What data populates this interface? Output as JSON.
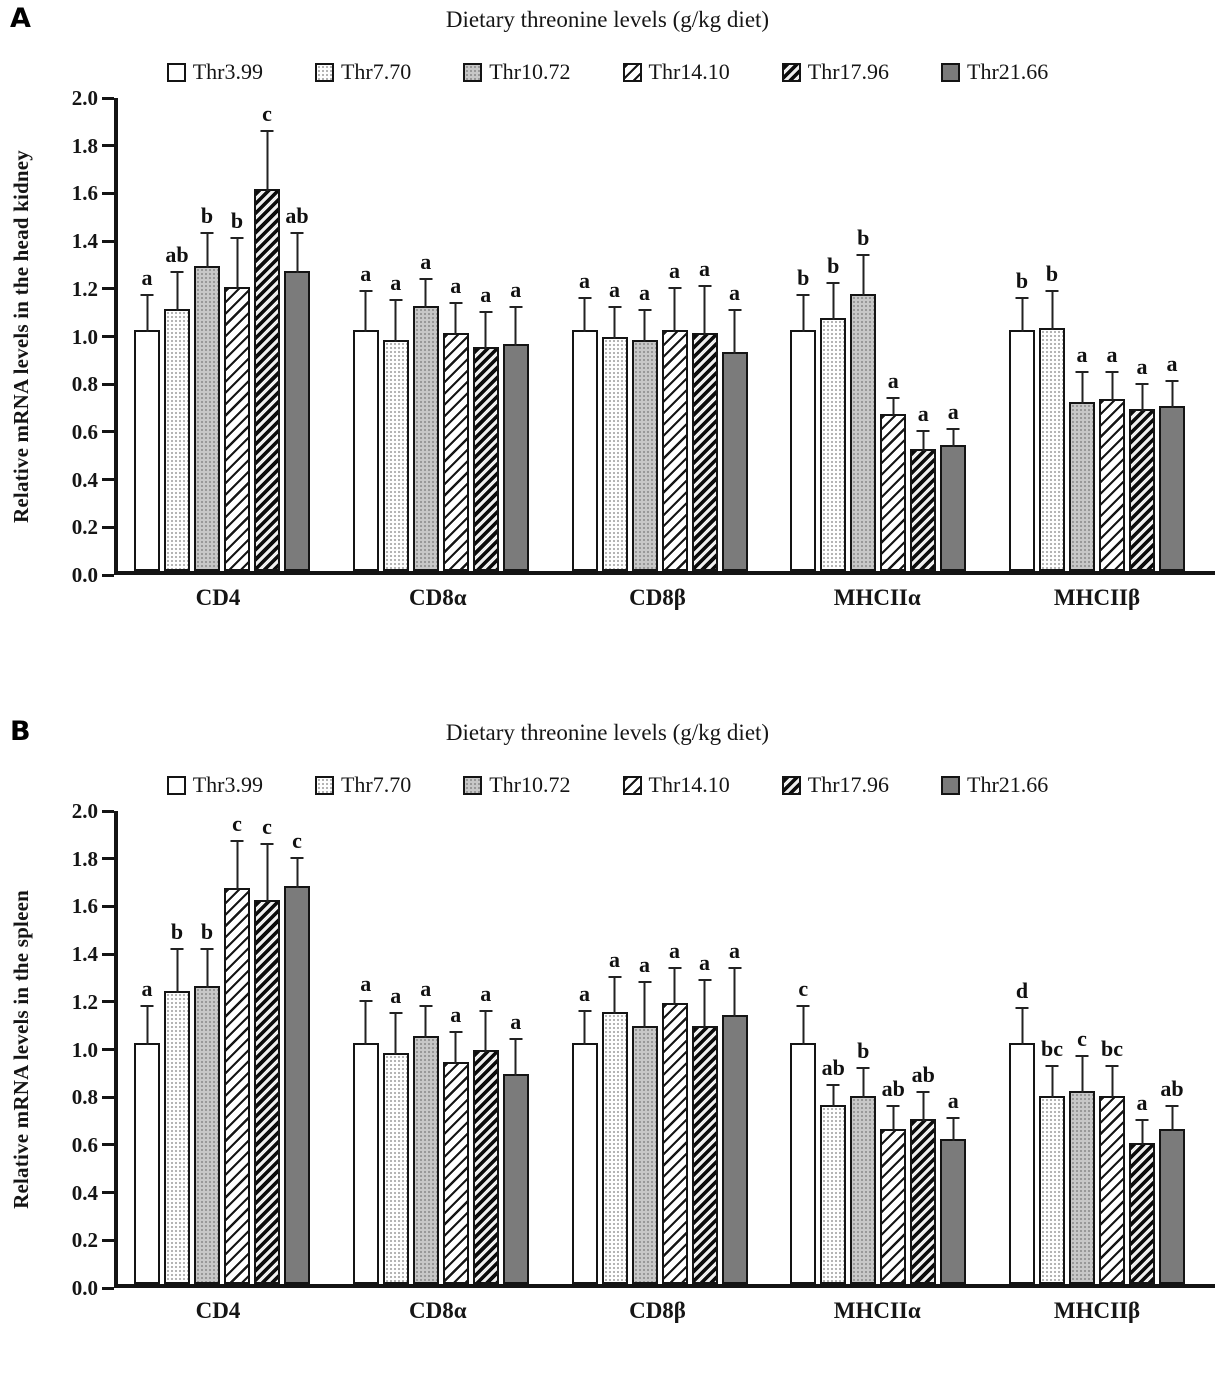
{
  "colors": {
    "bar_border": "#141414",
    "axis": "#141414",
    "error_bar": "#222222",
    "solid_bar_fill": "#7b7b7b",
    "dots_gray_fill": "#c7c7c7",
    "background": "#ffffff"
  },
  "chart_data": [
    {
      "type": "bar",
      "panel_label": "A",
      "title": "Dietary threonine levels (g/kg diet)",
      "ylabel": "Relative mRNA levels in the head kidney",
      "ylim": [
        0.0,
        2.0
      ],
      "ytick_step": 0.2,
      "yticks": [
        "2.0",
        "1.8",
        "1.6",
        "1.4",
        "1.2",
        "1.0",
        "0.8",
        "0.6",
        "0.4",
        "0.2",
        "0.0"
      ],
      "grid": false,
      "legend_position": "top",
      "error_bars": true,
      "categories": [
        "CD4",
        "CD8α",
        "CD8β",
        "MHCIIα",
        "MHCIIβ"
      ],
      "series": [
        {
          "name": "Thr3.99",
          "pattern": "white",
          "values": [
            1.01,
            1.01,
            1.01,
            1.01,
            1.01
          ],
          "errors": [
            0.15,
            0.17,
            0.14,
            0.15,
            0.14
          ],
          "letters": [
            "a",
            "a",
            "a",
            "b",
            "b"
          ]
        },
        {
          "name": "Thr7.70",
          "pattern": "dots-light",
          "values": [
            1.1,
            0.97,
            0.98,
            1.06,
            1.02
          ],
          "errors": [
            0.16,
            0.17,
            0.13,
            0.15,
            0.16
          ],
          "letters": [
            "ab",
            "a",
            "a",
            "b",
            "b"
          ]
        },
        {
          "name": "Thr10.72",
          "pattern": "dots-gray",
          "values": [
            1.28,
            1.11,
            0.97,
            1.16,
            0.71
          ],
          "errors": [
            0.14,
            0.12,
            0.13,
            0.17,
            0.13
          ],
          "letters": [
            "b",
            "a",
            "a",
            "b",
            "a"
          ]
        },
        {
          "name": "Thr14.10",
          "pattern": "hatch-diagonal",
          "values": [
            1.19,
            1.0,
            1.01,
            0.66,
            0.72
          ],
          "errors": [
            0.21,
            0.13,
            0.18,
            0.07,
            0.12
          ],
          "letters": [
            "b",
            "a",
            "a",
            "a",
            "a"
          ]
        },
        {
          "name": "Thr17.96",
          "pattern": "hatch-diagonal-dense",
          "values": [
            1.6,
            0.94,
            1.0,
            0.51,
            0.68
          ],
          "errors": [
            0.25,
            0.15,
            0.2,
            0.08,
            0.11
          ],
          "letters": [
            "c",
            "a",
            "a",
            "a",
            "a"
          ]
        },
        {
          "name": "Thr21.66",
          "pattern": "solid-gray",
          "values": [
            1.26,
            0.95,
            0.92,
            0.53,
            0.69
          ],
          "errors": [
            0.16,
            0.16,
            0.18,
            0.07,
            0.11
          ],
          "letters": [
            "ab",
            "a",
            "a",
            "a",
            "a"
          ]
        }
      ]
    },
    {
      "type": "bar",
      "panel_label": "B",
      "title": "Dietary threonine levels (g/kg diet)",
      "ylabel": "Relative mRNA levels in the spleen",
      "ylim": [
        0.0,
        2.0
      ],
      "ytick_step": 0.2,
      "yticks": [
        "2.0",
        "1.8",
        "1.6",
        "1.4",
        "1.2",
        "1.0",
        "0.8",
        "0.6",
        "0.4",
        "0.2",
        "0.0"
      ],
      "grid": false,
      "legend_position": "top",
      "error_bars": true,
      "categories": [
        "CD4",
        "CD8α",
        "CD8β",
        "MHCIIα",
        "MHCIIβ"
      ],
      "series": [
        {
          "name": "Thr3.99",
          "pattern": "white",
          "values": [
            1.01,
            1.01,
            1.01,
            1.01,
            1.01
          ],
          "errors": [
            0.16,
            0.18,
            0.14,
            0.16,
            0.15
          ],
          "letters": [
            "a",
            "a",
            "a",
            "c",
            "d"
          ]
        },
        {
          "name": "Thr7.70",
          "pattern": "dots-light",
          "values": [
            1.23,
            0.97,
            1.14,
            0.75,
            0.79
          ],
          "errors": [
            0.18,
            0.17,
            0.15,
            0.09,
            0.13
          ],
          "letters": [
            "b",
            "a",
            "a",
            "ab",
            "bc"
          ]
        },
        {
          "name": "Thr10.72",
          "pattern": "dots-gray",
          "values": [
            1.25,
            1.04,
            1.08,
            0.79,
            0.81
          ],
          "errors": [
            0.16,
            0.13,
            0.19,
            0.12,
            0.15
          ],
          "letters": [
            "b",
            "a",
            "a",
            "b",
            "c"
          ]
        },
        {
          "name": "Thr14.10",
          "pattern": "hatch-diagonal",
          "values": [
            1.66,
            0.93,
            1.18,
            0.65,
            0.79
          ],
          "errors": [
            0.2,
            0.13,
            0.15,
            0.1,
            0.13
          ],
          "letters": [
            "c",
            "a",
            "a",
            "ab",
            "bc"
          ]
        },
        {
          "name": "Thr17.96",
          "pattern": "hatch-diagonal-dense",
          "values": [
            1.61,
            0.98,
            1.08,
            0.69,
            0.59
          ],
          "errors": [
            0.24,
            0.17,
            0.2,
            0.12,
            0.1
          ],
          "letters": [
            "c",
            "a",
            "a",
            "ab",
            "a"
          ]
        },
        {
          "name": "Thr21.66",
          "pattern": "solid-gray",
          "values": [
            1.67,
            0.88,
            1.13,
            0.61,
            0.65
          ],
          "errors": [
            0.12,
            0.15,
            0.2,
            0.09,
            0.1
          ],
          "letters": [
            "c",
            "a",
            "a",
            "a",
            "ab"
          ]
        }
      ]
    }
  ]
}
